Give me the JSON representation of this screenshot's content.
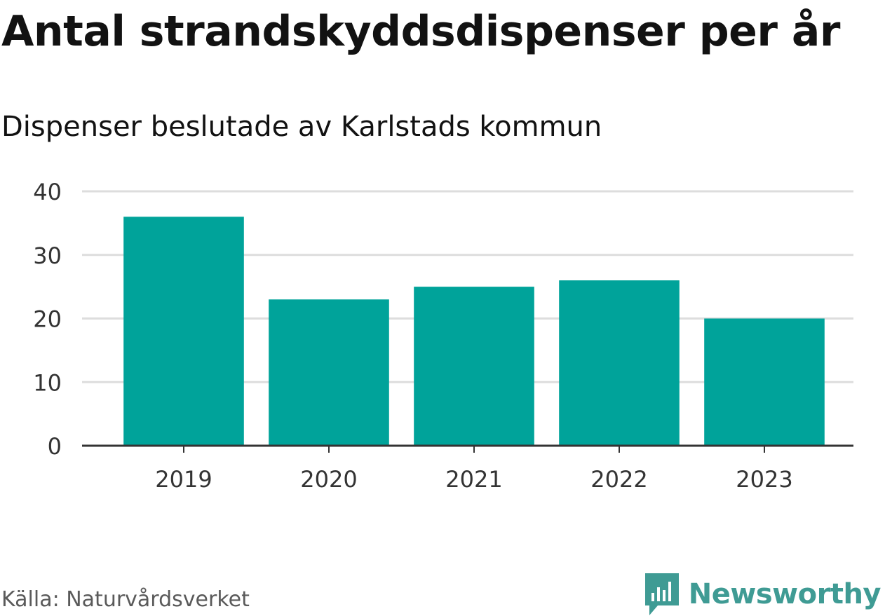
{
  "title": "Antal strandskyddsdispenser per år",
  "subtitle": "Dispenser beslutade av Karlstads kommun",
  "source": "Källa: Naturvårdsverket",
  "brand": {
    "name": "Newsworthy",
    "icon": "newsworthy-logo-icon",
    "color": "#3f9b94"
  },
  "colors": {
    "bar": "#00a39a",
    "grid": "#dddddd",
    "axis": "#333333",
    "text": "#333333"
  },
  "chart_data": {
    "type": "bar",
    "title": "Antal strandskyddsdispenser per år",
    "subtitle": "Dispenser beslutade av Karlstads kommun",
    "xlabel": "",
    "ylabel": "",
    "categories": [
      "2019",
      "2020",
      "2021",
      "2022",
      "2023"
    ],
    "values": [
      36,
      23,
      25,
      26,
      20
    ],
    "ylim": [
      0,
      40
    ],
    "yticks": [
      0,
      10,
      20,
      30,
      40
    ],
    "grid": true,
    "legend": "none"
  }
}
